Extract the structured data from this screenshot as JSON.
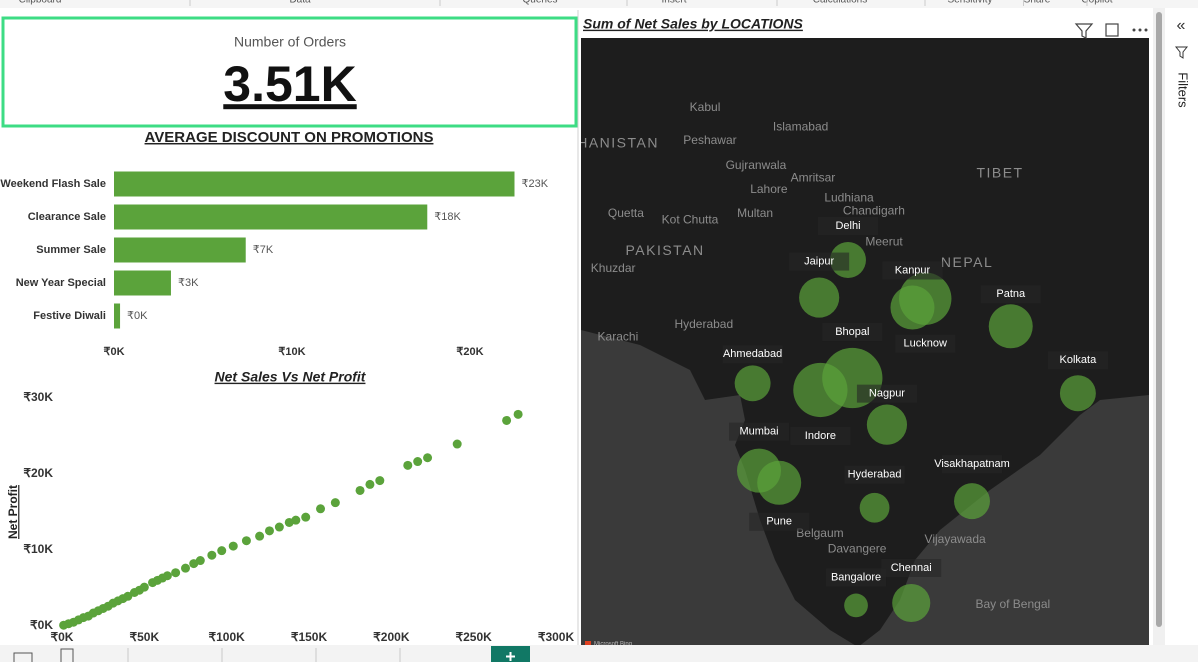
{
  "ribbon": {
    "groups": [
      "Clipboard",
      "Data",
      "Queries",
      "Insert",
      "Calculations",
      "Sensitivity",
      "Share",
      "Copilot"
    ]
  },
  "filters_pane": {
    "title": "Filters"
  },
  "chart_data": [
    {
      "type": "card",
      "title": "Number of Orders",
      "value": 3510,
      "value_label": "3.51K"
    },
    {
      "type": "bar",
      "orientation": "horizontal",
      "title": "AVERAGE DISCOUNT ON PROMOTIONS",
      "categories": [
        "Weekend Flash Sale",
        "Clearance Sale",
        "Summer Sale",
        "New Year Special",
        "Festive Diwali"
      ],
      "values": [
        22500,
        17600,
        7400,
        3200,
        340
      ],
      "value_labels": [
        "₹23K",
        "₹18K",
        "₹7K",
        "₹3K",
        "₹0K"
      ],
      "color": "#5ba33b",
      "xlim": [
        0,
        25000
      ],
      "xticks": [
        {
          "value": 0,
          "label": "₹0K"
        },
        {
          "value": 10000,
          "label": "₹10K"
        },
        {
          "value": 20000,
          "label": "₹20K"
        }
      ]
    },
    {
      "type": "scatter",
      "title": "Net Sales Vs Net Profit",
      "y_label": "Net Profit",
      "color": "#5ba33b",
      "x": [
        277000,
        270000,
        240000,
        222000,
        216000,
        210000,
        193000,
        187000,
        181000,
        166000,
        157000,
        148000,
        142000,
        138000,
        132000,
        126000,
        120000,
        112000,
        104000,
        97000,
        91000,
        84000,
        75000,
        69000,
        61000,
        55000,
        47000,
        40000,
        34000,
        28000,
        22000,
        16000,
        10000,
        4000,
        1000,
        80000,
        64000,
        58000,
        50000,
        44000,
        37000,
        31000,
        25000,
        19000,
        13000,
        7000
      ],
      "values": [
        27800,
        27000,
        23900,
        22100,
        21600,
        21100,
        19100,
        18600,
        17800,
        16200,
        15400,
        14300,
        13900,
        13600,
        13000,
        12500,
        11800,
        11200,
        10500,
        9900,
        9300,
        8600,
        7600,
        7000,
        6300,
        5700,
        4700,
        3900,
        3300,
        2600,
        2000,
        1300,
        800,
        300,
        100,
        8200,
        6600,
        6000,
        5100,
        4400,
        3600,
        3000,
        2300,
        1700,
        1100,
        500
      ],
      "xlim": [
        0,
        300000
      ],
      "ylim": [
        0,
        31000
      ],
      "xticks": [
        {
          "value": 0,
          "label": "₹0K"
        },
        {
          "value": 50000,
          "label": "₹50K"
        },
        {
          "value": 100000,
          "label": "₹100K"
        },
        {
          "value": 150000,
          "label": "₹150K"
        },
        {
          "value": 200000,
          "label": "₹200K"
        },
        {
          "value": 250000,
          "label": "₹250K"
        },
        {
          "value": 300000,
          "label": "₹300K"
        }
      ],
      "yticks": [
        {
          "value": 0,
          "label": "₹0K"
        },
        {
          "value": 10000,
          "label": "₹10K"
        },
        {
          "value": 20000,
          "label": "₹20K"
        },
        {
          "value": 30000,
          "label": "₹30K"
        }
      ]
    },
    {
      "type": "map",
      "title": "Sum of Net Sales by LOCATIONS",
      "color": "#5ba33b",
      "attribution": "Microsoft Bing",
      "categories": [
        "Delhi",
        "Jaipur",
        "Kanpur",
        "Lucknow",
        "Patna",
        "Bhopal",
        "Ahmedabad",
        "Kolkata",
        "Nagpur",
        "Indore",
        "Mumbai",
        "Pune",
        "Hyderabad",
        "Visakhapatnam",
        "Chennai",
        "Bangalore"
      ],
      "lat": [
        28.6,
        26.9,
        26.45,
        26.85,
        25.6,
        23.26,
        23.02,
        22.57,
        21.15,
        22.72,
        19.07,
        18.52,
        17.39,
        17.69,
        13.08,
        12.97
      ],
      "lon": [
        77.2,
        75.8,
        80.33,
        80.95,
        85.1,
        77.41,
        72.57,
        88.36,
        79.09,
        75.86,
        72.88,
        73.86,
        78.49,
        83.22,
        80.27,
        77.59
      ],
      "values": [
        3200,
        4000,
        4800,
        6800,
        4800,
        9000,
        3200,
        3200,
        4000,
        7300,
        4800,
        4800,
        2200,
        3200,
        3600,
        1400
      ],
      "basemap_labels": [
        {
          "text": "Kabul",
          "lat": 35.48,
          "lon": 70.26
        },
        {
          "text": "Peshawar",
          "lat": 34.0,
          "lon": 70.5
        },
        {
          "text": "Islamabad",
          "lat": 34.6,
          "lon": 74.9
        },
        {
          "text": "HANISTAN",
          "lat": 33.85,
          "lon": 66.04
        },
        {
          "text": "Gujranwala",
          "lat": 32.85,
          "lon": 72.73
        },
        {
          "text": "Lahore",
          "lat": 31.77,
          "lon": 73.36
        },
        {
          "text": "Amritsar",
          "lat": 32.3,
          "lon": 75.5
        },
        {
          "text": "Ludhiana",
          "lat": 31.4,
          "lon": 77.25
        },
        {
          "text": "Multan",
          "lat": 30.7,
          "lon": 72.69
        },
        {
          "text": "Chandigarh",
          "lat": 30.8,
          "lon": 78.46
        },
        {
          "text": "Quetta",
          "lat": 30.7,
          "lon": 66.42
        },
        {
          "text": "Kot Chutta",
          "lat": 30.4,
          "lon": 69.53
        },
        {
          "text": "PAKISTAN",
          "lat": 29.0,
          "lon": 68.32
        },
        {
          "text": "Meerut",
          "lat": 29.4,
          "lon": 78.95
        },
        {
          "text": "Khuzdar",
          "lat": 28.2,
          "lon": 65.8
        },
        {
          "text": "Hyderabad",
          "lat": 25.66,
          "lon": 70.2
        },
        {
          "text": "Karachi",
          "lat": 25.1,
          "lon": 66.03
        },
        {
          "text": "TIBET",
          "lat": 32.5,
          "lon": 84.58
        },
        {
          "text": "NEPAL",
          "lat": 28.46,
          "lon": 82.98
        },
        {
          "text": "Bay of Bengal",
          "lat": 12.99,
          "lon": 85.2
        },
        {
          "text": "Vijayawada",
          "lat": 15.93,
          "lon": 82.4
        },
        {
          "text": "Davangere",
          "lat": 15.5,
          "lon": 77.64
        },
        {
          "text": "Belgaum",
          "lat": 16.2,
          "lon": 75.84
        }
      ]
    }
  ]
}
